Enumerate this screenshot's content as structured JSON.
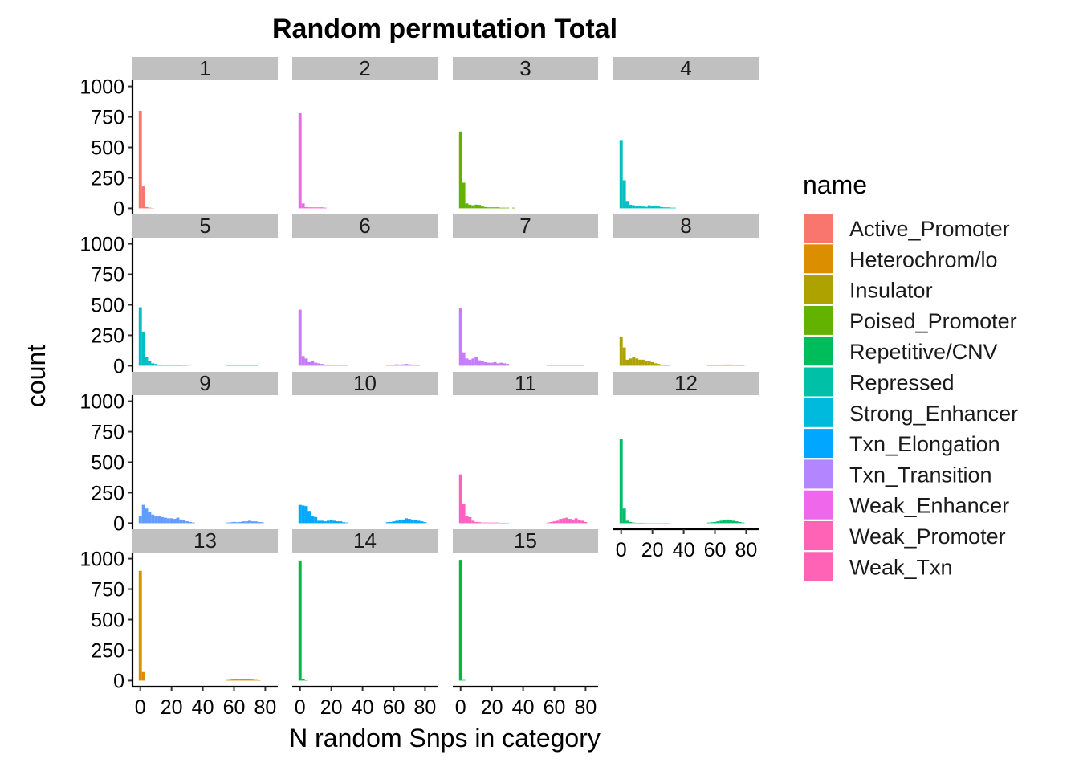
{
  "chart_data": {
    "type": "bar",
    "title": "Random permutation Total",
    "xlabel": "N random Snps in category",
    "ylabel": "count",
    "xlim": [
      -5,
      88
    ],
    "ylim": [
      -50,
      1050
    ],
    "x_ticks": [
      0,
      20,
      40,
      60,
      80
    ],
    "y_ticks": [
      0,
      250,
      500,
      750,
      1000
    ],
    "x_tick_labels": [
      "0",
      "20",
      "40",
      "60",
      "80"
    ],
    "y_tick_labels": [
      "0",
      "250",
      "500",
      "750",
      "1000"
    ],
    "bin_width": 2,
    "legend": {
      "title": "name",
      "position": "right",
      "entries": [
        {
          "label": "Active_Promoter",
          "color": "#F8766D"
        },
        {
          "label": "Heterochrom/lo",
          "color": "#DB8E00"
        },
        {
          "label": "Insulator",
          "color": "#AEA200"
        },
        {
          "label": "Poised_Promoter",
          "color": "#64B200"
        },
        {
          "label": "Repetitive/CNV",
          "color": "#00BD5C"
        },
        {
          "label": "Repressed",
          "color": "#00C1A7"
        },
        {
          "label": "Strong_Enhancer",
          "color": "#00BADE"
        },
        {
          "label": "Txn_Elongation",
          "color": "#00A6FF"
        },
        {
          "label": "Txn_Transition",
          "color": "#B385FF"
        },
        {
          "label": "Weak_Enhancer",
          "color": "#EF67EB"
        },
        {
          "label": "Weak_Promoter",
          "color": "#FF63B6"
        },
        {
          "label": "Weak_Txn",
          "color": "#FF63B6"
        }
      ]
    },
    "panels": [
      {
        "label": "1",
        "color": "#F8766D",
        "bins": [
          [
            0,
            800
          ],
          [
            2,
            180
          ],
          [
            4,
            10
          ],
          [
            6,
            5
          ],
          [
            8,
            2
          ]
        ]
      },
      {
        "label": "2",
        "color": "#EF67EB",
        "bins": [
          [
            0,
            780
          ],
          [
            2,
            40
          ],
          [
            4,
            10
          ],
          [
            6,
            8
          ],
          [
            8,
            8
          ],
          [
            10,
            8
          ],
          [
            12,
            8
          ],
          [
            14,
            8
          ],
          [
            16,
            5
          ]
        ]
      },
      {
        "label": "3",
        "color": "#64B200",
        "bins": [
          [
            0,
            630
          ],
          [
            2,
            210
          ],
          [
            4,
            40
          ],
          [
            6,
            30
          ],
          [
            8,
            25
          ],
          [
            10,
            30
          ],
          [
            12,
            28
          ],
          [
            14,
            15
          ],
          [
            16,
            10
          ],
          [
            18,
            8
          ],
          [
            20,
            8
          ],
          [
            22,
            8
          ],
          [
            24,
            8
          ],
          [
            26,
            5
          ],
          [
            28,
            5
          ],
          [
            30,
            5
          ],
          [
            34,
            5
          ]
        ]
      },
      {
        "label": "4",
        "color": "#00BFC4",
        "bins": [
          [
            0,
            560
          ],
          [
            2,
            230
          ],
          [
            4,
            60
          ],
          [
            6,
            30
          ],
          [
            8,
            25
          ],
          [
            10,
            20
          ],
          [
            12,
            18
          ],
          [
            14,
            15
          ],
          [
            16,
            12
          ],
          [
            18,
            25
          ],
          [
            20,
            20
          ],
          [
            22,
            22
          ],
          [
            24,
            15
          ],
          [
            26,
            10
          ],
          [
            28,
            8
          ],
          [
            30,
            8
          ],
          [
            32,
            5
          ],
          [
            34,
            5
          ]
        ]
      },
      {
        "label": "5",
        "color": "#00BFC4",
        "bins": [
          [
            0,
            480
          ],
          [
            2,
            280
          ],
          [
            4,
            70
          ],
          [
            6,
            40
          ],
          [
            8,
            20
          ],
          [
            10,
            15
          ],
          [
            12,
            10
          ],
          [
            14,
            8
          ],
          [
            16,
            5
          ],
          [
            18,
            5
          ],
          [
            20,
            3
          ],
          [
            22,
            3
          ],
          [
            24,
            3
          ],
          [
            26,
            3
          ],
          [
            28,
            2
          ],
          [
            30,
            2
          ],
          [
            56,
            3
          ],
          [
            58,
            8
          ],
          [
            60,
            5
          ],
          [
            62,
            5
          ],
          [
            64,
            8
          ],
          [
            66,
            6
          ],
          [
            68,
            8
          ],
          [
            70,
            5
          ],
          [
            72,
            5
          ],
          [
            74,
            3
          ]
        ]
      },
      {
        "label": "6",
        "color": "#C77CFF",
        "bins": [
          [
            0,
            460
          ],
          [
            2,
            80
          ],
          [
            4,
            60
          ],
          [
            6,
            30
          ],
          [
            8,
            40
          ],
          [
            10,
            25
          ],
          [
            12,
            20
          ],
          [
            14,
            15
          ],
          [
            16,
            10
          ],
          [
            18,
            10
          ],
          [
            20,
            8
          ],
          [
            22,
            5
          ],
          [
            24,
            5
          ],
          [
            26,
            5
          ],
          [
            28,
            4
          ],
          [
            30,
            3
          ],
          [
            56,
            4
          ],
          [
            58,
            8
          ],
          [
            60,
            10
          ],
          [
            62,
            12
          ],
          [
            64,
            10
          ],
          [
            66,
            12
          ],
          [
            68,
            15
          ],
          [
            70,
            12
          ],
          [
            72,
            10
          ],
          [
            74,
            8
          ],
          [
            76,
            5
          ]
        ]
      },
      {
        "label": "7",
        "color": "#C77CFF",
        "bins": [
          [
            0,
            470
          ],
          [
            2,
            110
          ],
          [
            4,
            60
          ],
          [
            6,
            50
          ],
          [
            8,
            60
          ],
          [
            10,
            70
          ],
          [
            12,
            45
          ],
          [
            14,
            40
          ],
          [
            16,
            30
          ],
          [
            18,
            25
          ],
          [
            20,
            25
          ],
          [
            22,
            30
          ],
          [
            24,
            20
          ],
          [
            26,
            25
          ],
          [
            28,
            20
          ],
          [
            30,
            15
          ],
          [
            56,
            3
          ],
          [
            58,
            3
          ],
          [
            60,
            3
          ],
          [
            62,
            3
          ],
          [
            64,
            3
          ],
          [
            66,
            3
          ],
          [
            68,
            3
          ],
          [
            70,
            3
          ],
          [
            72,
            3
          ],
          [
            74,
            3
          ],
          [
            76,
            3
          ],
          [
            78,
            3
          ]
        ]
      },
      {
        "label": "8",
        "color": "#AEA200",
        "bins": [
          [
            0,
            240
          ],
          [
            2,
            150
          ],
          [
            4,
            50
          ],
          [
            6,
            60
          ],
          [
            8,
            70
          ],
          [
            10,
            60
          ],
          [
            12,
            50
          ],
          [
            14,
            50
          ],
          [
            16,
            40
          ],
          [
            18,
            35
          ],
          [
            20,
            30
          ],
          [
            22,
            20
          ],
          [
            24,
            15
          ],
          [
            26,
            10
          ],
          [
            28,
            5
          ],
          [
            30,
            5
          ],
          [
            56,
            4
          ],
          [
            58,
            4
          ],
          [
            60,
            5
          ],
          [
            62,
            5
          ],
          [
            64,
            8
          ],
          [
            66,
            10
          ],
          [
            68,
            10
          ],
          [
            70,
            10
          ],
          [
            72,
            8
          ],
          [
            74,
            8
          ],
          [
            76,
            8
          ],
          [
            78,
            5
          ]
        ]
      },
      {
        "label": "9",
        "color": "#619CFF",
        "bins": [
          [
            0,
            60
          ],
          [
            2,
            150
          ],
          [
            4,
            120
          ],
          [
            6,
            90
          ],
          [
            8,
            70
          ],
          [
            10,
            60
          ],
          [
            12,
            55
          ],
          [
            14,
            50
          ],
          [
            16,
            45
          ],
          [
            18,
            40
          ],
          [
            20,
            40
          ],
          [
            22,
            35
          ],
          [
            24,
            45
          ],
          [
            26,
            30
          ],
          [
            28,
            25
          ],
          [
            30,
            15
          ],
          [
            32,
            10
          ],
          [
            34,
            5
          ],
          [
            56,
            5
          ],
          [
            58,
            8
          ],
          [
            60,
            10
          ],
          [
            62,
            8
          ],
          [
            64,
            10
          ],
          [
            66,
            15
          ],
          [
            68,
            15
          ],
          [
            70,
            20
          ],
          [
            72,
            15
          ],
          [
            74,
            15
          ],
          [
            76,
            10
          ],
          [
            78,
            8
          ]
        ]
      },
      {
        "label": "10",
        "color": "#00A9FF",
        "bins": [
          [
            0,
            150
          ],
          [
            2,
            145
          ],
          [
            4,
            140
          ],
          [
            6,
            100
          ],
          [
            8,
            60
          ],
          [
            10,
            50
          ],
          [
            12,
            20
          ],
          [
            14,
            20
          ],
          [
            16,
            15
          ],
          [
            18,
            20
          ],
          [
            20,
            25
          ],
          [
            22,
            20
          ],
          [
            24,
            15
          ],
          [
            26,
            15
          ],
          [
            28,
            8
          ],
          [
            30,
            5
          ],
          [
            56,
            8
          ],
          [
            58,
            10
          ],
          [
            60,
            15
          ],
          [
            62,
            20
          ],
          [
            64,
            25
          ],
          [
            66,
            30
          ],
          [
            68,
            40
          ],
          [
            70,
            35
          ],
          [
            72,
            30
          ],
          [
            74,
            25
          ],
          [
            76,
            20
          ],
          [
            78,
            15
          ],
          [
            80,
            8
          ]
        ]
      },
      {
        "label": "11",
        "color": "#FF61C3",
        "bins": [
          [
            0,
            400
          ],
          [
            2,
            160
          ],
          [
            4,
            60
          ],
          [
            6,
            50
          ],
          [
            8,
            20
          ],
          [
            10,
            10
          ],
          [
            12,
            8
          ],
          [
            14,
            5
          ],
          [
            16,
            5
          ],
          [
            18,
            5
          ],
          [
            20,
            5
          ],
          [
            22,
            5
          ],
          [
            24,
            5
          ],
          [
            26,
            3
          ],
          [
            28,
            3
          ],
          [
            30,
            3
          ],
          [
            56,
            5
          ],
          [
            58,
            10
          ],
          [
            60,
            15
          ],
          [
            62,
            20
          ],
          [
            64,
            35
          ],
          [
            66,
            40
          ],
          [
            68,
            45
          ],
          [
            70,
            35
          ],
          [
            72,
            30
          ],
          [
            74,
            40
          ],
          [
            76,
            25
          ],
          [
            78,
            20
          ],
          [
            80,
            10
          ]
        ]
      },
      {
        "label": "12",
        "color": "#00BE67",
        "bins": [
          [
            0,
            690
          ],
          [
            2,
            120
          ],
          [
            4,
            20
          ],
          [
            6,
            10
          ],
          [
            8,
            5
          ],
          [
            10,
            3
          ],
          [
            12,
            3
          ],
          [
            14,
            3
          ],
          [
            16,
            2
          ],
          [
            18,
            2
          ],
          [
            20,
            2
          ],
          [
            22,
            2
          ],
          [
            24,
            2
          ],
          [
            26,
            2
          ],
          [
            28,
            2
          ],
          [
            30,
            2
          ],
          [
            56,
            5
          ],
          [
            58,
            8
          ],
          [
            60,
            10
          ],
          [
            62,
            15
          ],
          [
            64,
            20
          ],
          [
            66,
            25
          ],
          [
            68,
            30
          ],
          [
            70,
            25
          ],
          [
            72,
            20
          ],
          [
            74,
            15
          ],
          [
            76,
            10
          ],
          [
            78,
            5
          ]
        ]
      },
      {
        "label": "13",
        "color": "#DB8E00",
        "bins": [
          [
            0,
            900
          ],
          [
            2,
            70
          ],
          [
            56,
            5
          ],
          [
            58,
            8
          ],
          [
            60,
            10
          ],
          [
            62,
            10
          ],
          [
            64,
            12
          ],
          [
            66,
            12
          ],
          [
            68,
            10
          ],
          [
            70,
            10
          ],
          [
            72,
            8
          ],
          [
            74,
            5
          ],
          [
            76,
            3
          ]
        ]
      },
      {
        "label": "14",
        "color": "#00BA38",
        "bins": [
          [
            0,
            985
          ],
          [
            2,
            10
          ],
          [
            4,
            3
          ]
        ]
      },
      {
        "label": "15",
        "color": "#00BA38",
        "bins": [
          [
            0,
            990
          ],
          [
            2,
            5
          ]
        ]
      }
    ]
  }
}
